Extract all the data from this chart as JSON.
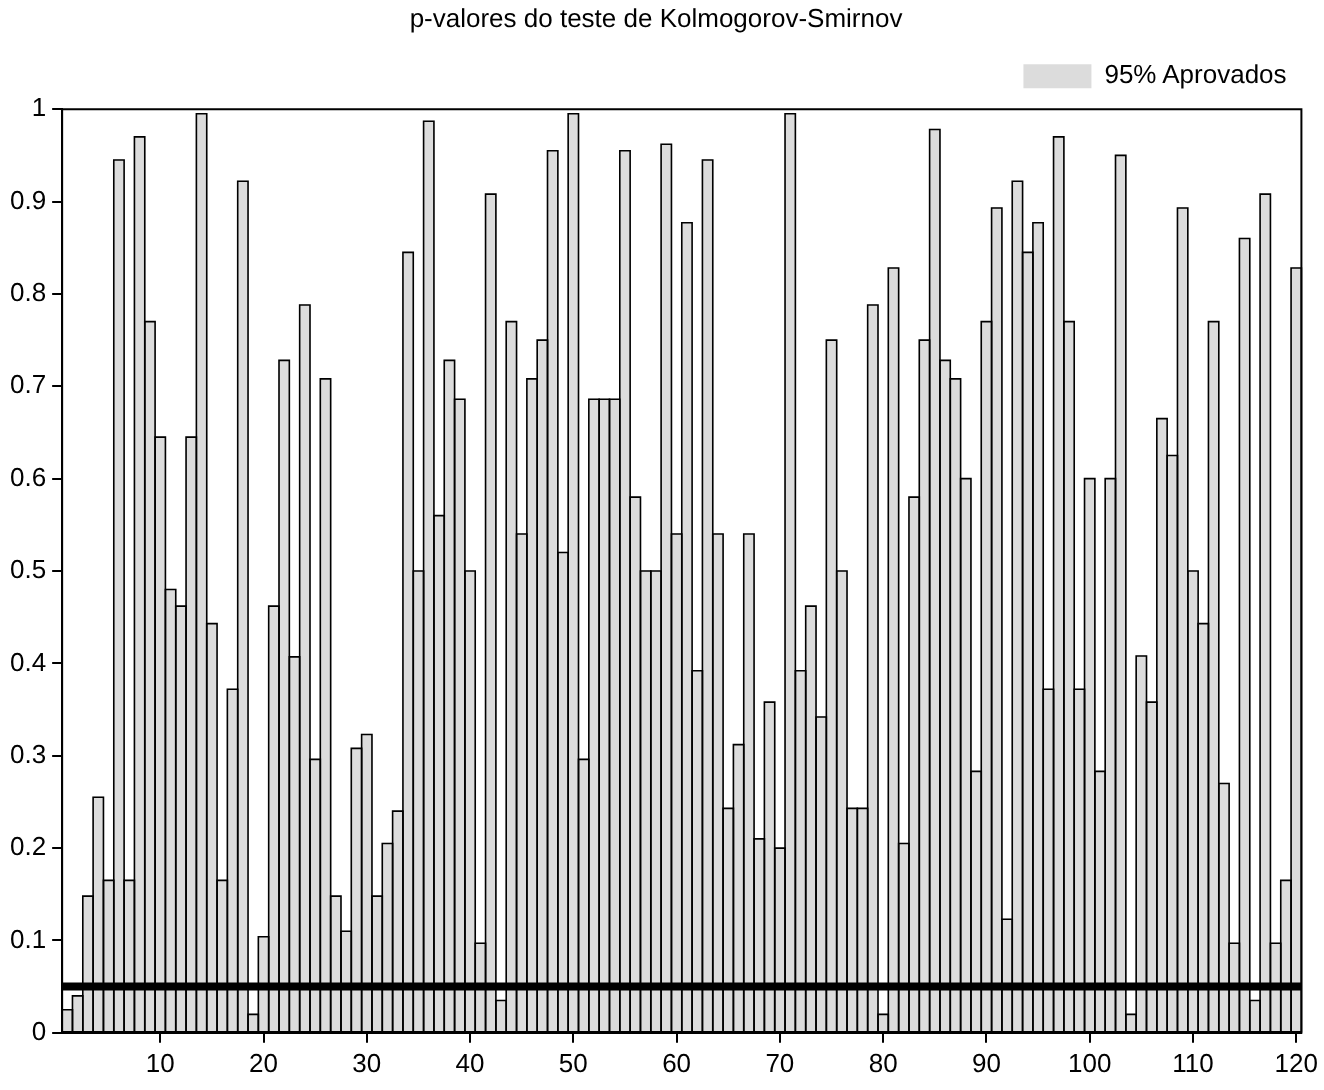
{
  "chart_data": {
    "type": "bar",
    "title": "p-valores do teste de Kolmogorov-Smirnov",
    "x": [
      1,
      2,
      3,
      4,
      5,
      6,
      7,
      8,
      9,
      10,
      11,
      12,
      13,
      14,
      15,
      16,
      17,
      18,
      19,
      20,
      21,
      22,
      23,
      24,
      25,
      26,
      27,
      28,
      29,
      30,
      31,
      32,
      33,
      34,
      35,
      36,
      37,
      38,
      39,
      40,
      41,
      42,
      43,
      44,
      45,
      46,
      47,
      48,
      49,
      50,
      51,
      52,
      53,
      54,
      55,
      56,
      57,
      58,
      59,
      60,
      61,
      62,
      63,
      64,
      65,
      66,
      67,
      68,
      69,
      70,
      71,
      72,
      73,
      74,
      75,
      76,
      77,
      78,
      79,
      80,
      81,
      82,
      83,
      84,
      85,
      86,
      87,
      88,
      89,
      90,
      91,
      92,
      93,
      94,
      95,
      96,
      97,
      98,
      99,
      100,
      101,
      102,
      103,
      104,
      105,
      106,
      107,
      108,
      109,
      110,
      111,
      112,
      113,
      114,
      115,
      116,
      117,
      118,
      119,
      120
    ],
    "series": [
      {
        "name": "95% Aprovados",
        "color": "#dcdcdc",
        "values": [
          0.025,
          0.04,
          0.148,
          0.255,
          0.165,
          0.945,
          0.165,
          0.97,
          0.77,
          0.645,
          0.48,
          0.462,
          0.645,
          0.995,
          0.443,
          0.165,
          0.372,
          0.922,
          0.02,
          0.104,
          0.462,
          0.728,
          0.407,
          0.788,
          0.296,
          0.708,
          0.148,
          0.11,
          0.308,
          0.323,
          0.148,
          0.205,
          0.24,
          0.845,
          0.5,
          0.987,
          0.56,
          0.728,
          0.686,
          0.5,
          0.097,
          0.908,
          0.035,
          0.77,
          0.54,
          0.708,
          0.75,
          0.955,
          0.52,
          0.995,
          0.296,
          0.686,
          0.686,
          0.686,
          0.955,
          0.58,
          0.5,
          0.5,
          0.962,
          0.54,
          0.877,
          0.392,
          0.945,
          0.54,
          0.243,
          0.312,
          0.54,
          0.21,
          0.358,
          0.2,
          0.995,
          0.392,
          0.462,
          0.342,
          0.75,
          0.5,
          0.243,
          0.243,
          0.788,
          0.02,
          0.828,
          0.205,
          0.58,
          0.75,
          0.978,
          0.728,
          0.708,
          0.6,
          0.283,
          0.77,
          0.893,
          0.123,
          0.922,
          0.845,
          0.877,
          0.372,
          0.97,
          0.77,
          0.372,
          0.6,
          0.283,
          0.6,
          0.95,
          0.02,
          0.408,
          0.358,
          0.665,
          0.625,
          0.893,
          0.5,
          0.443,
          0.77,
          0.27,
          0.097,
          0.86,
          0.035,
          0.908,
          0.097,
          0.165,
          0.828
        ]
      }
    ],
    "xlim": [
      0.5,
      120.5
    ],
    "xticks": [
      10,
      20,
      30,
      40,
      50,
      60,
      70,
      80,
      90,
      100,
      110,
      120
    ],
    "ylim": [
      0,
      1
    ],
    "yticks": [
      0,
      0.1,
      0.2,
      0.3,
      0.4,
      0.5,
      0.6,
      0.7,
      0.8,
      0.9,
      1
    ],
    "ref_lines": [
      {
        "axis": "y",
        "value": 0.05,
        "color": "#000000"
      }
    ],
    "grid": false,
    "legend": "top right"
  }
}
